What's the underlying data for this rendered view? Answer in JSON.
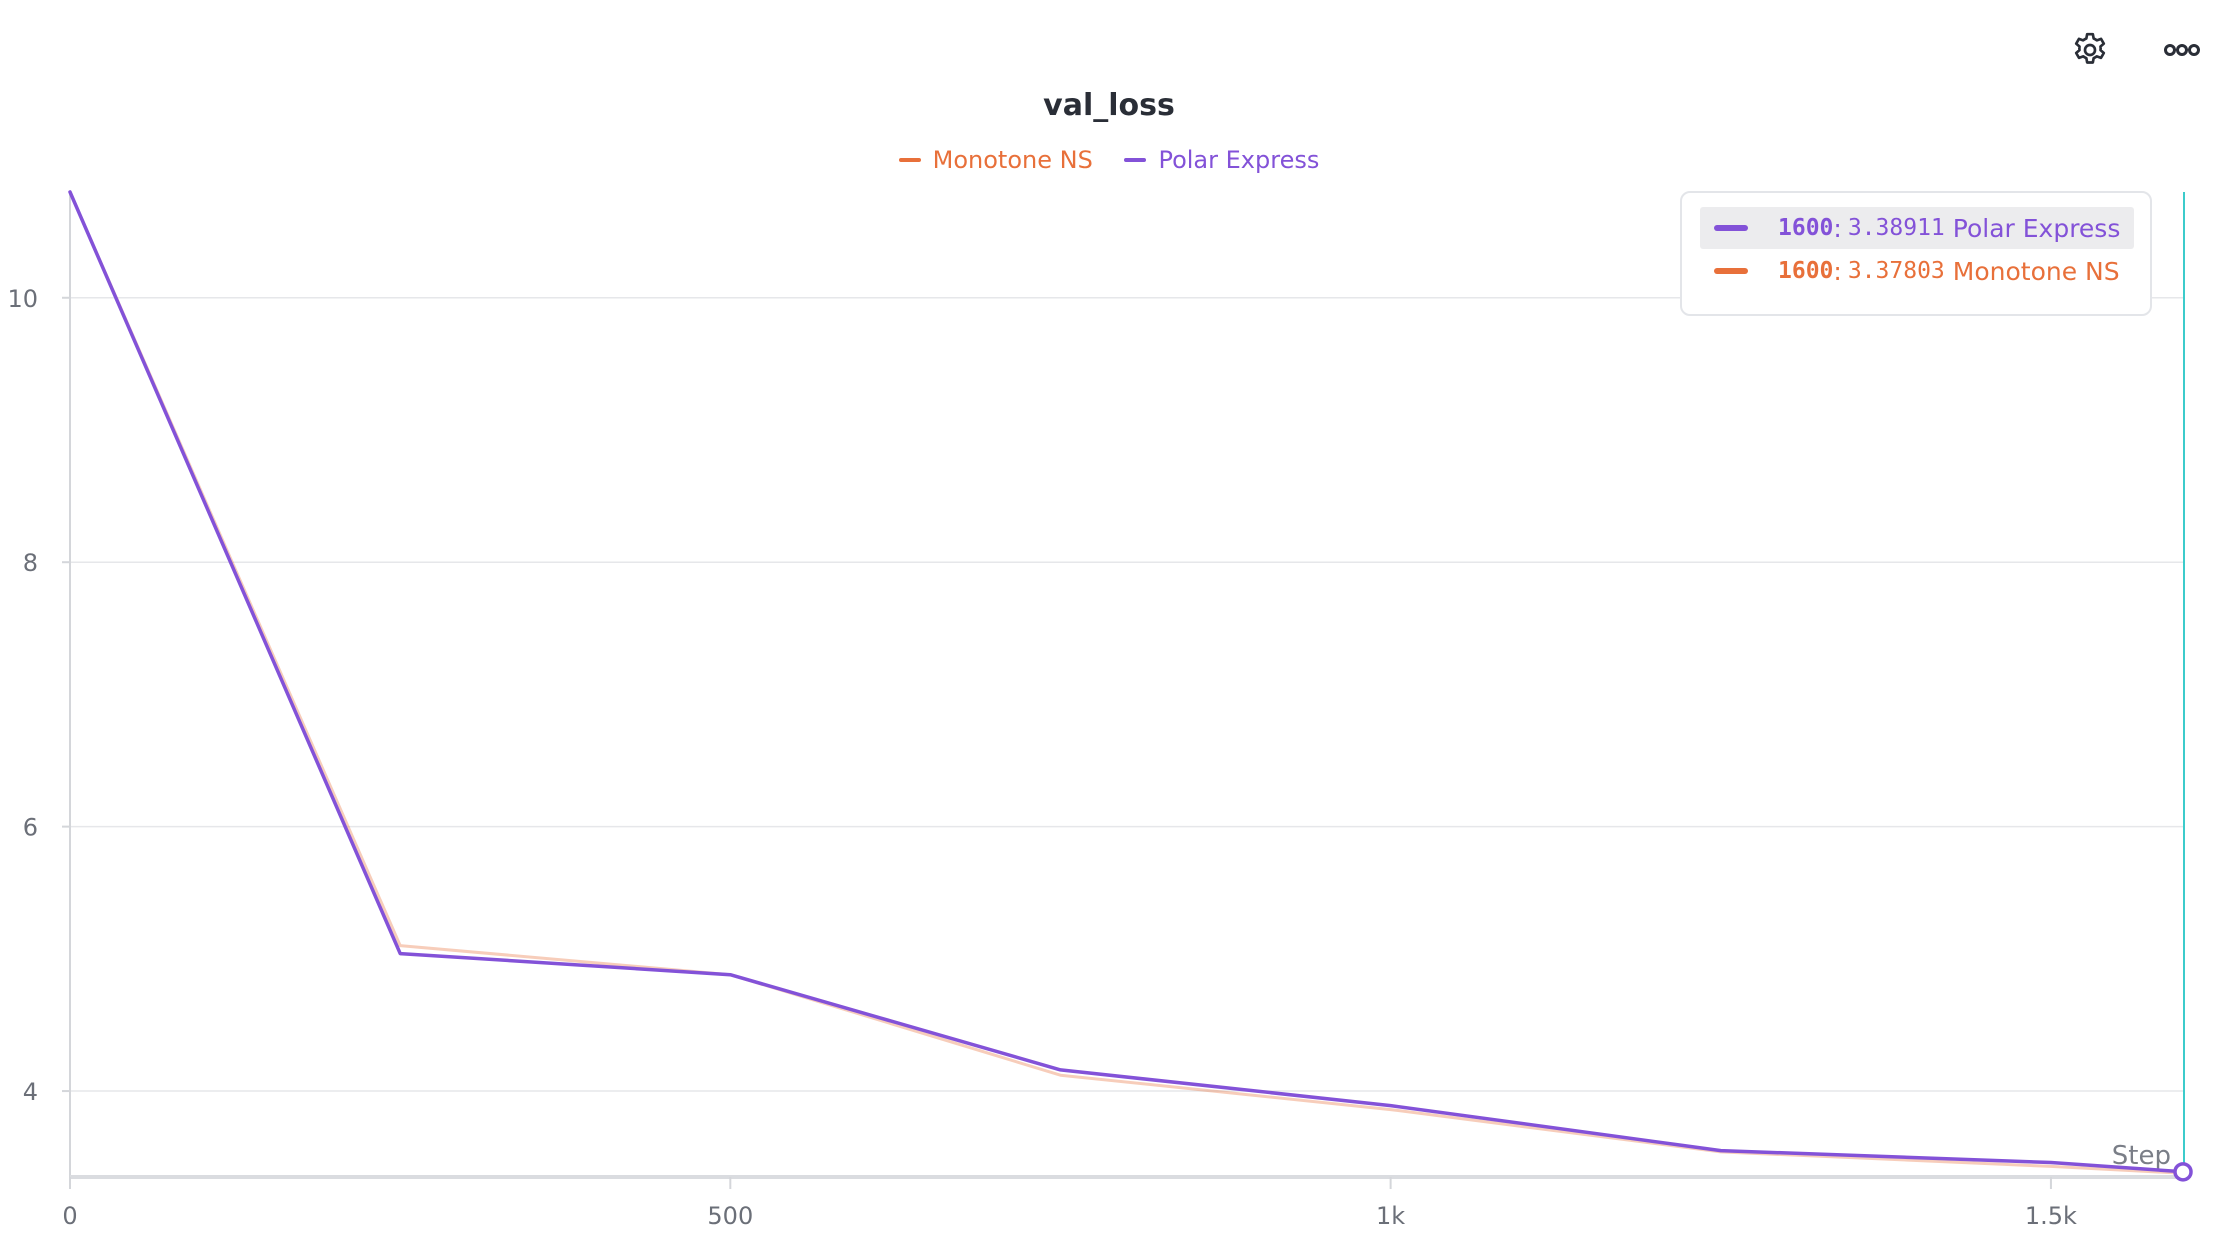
{
  "header": {
    "settings_icon": "gear-icon",
    "more_icon": "ellipsis-icon"
  },
  "chart_data": {
    "type": "line",
    "title": "val_loss",
    "xlabel": "Step",
    "ylabel": "",
    "xlim": [
      0,
      1600
    ],
    "ylim": [
      3.35,
      10.8
    ],
    "x_ticks": [
      0,
      500,
      1000,
      1500
    ],
    "x_tick_labels": [
      "0",
      "500",
      "1k",
      "1.5k"
    ],
    "y_ticks": [
      4,
      6,
      8,
      10
    ],
    "y_tick_labels": [
      "4",
      "6",
      "8",
      "10"
    ],
    "grid": true,
    "legend_position": "top-center",
    "series": [
      {
        "name": "Monotone NS",
        "color": "#e8703a",
        "x": [
          0,
          250,
          500,
          750,
          1000,
          1250,
          1500,
          1600
        ],
        "values": [
          10.8,
          5.1,
          4.88,
          4.12,
          3.86,
          3.54,
          3.43,
          3.37803
        ]
      },
      {
        "name": "Polar Express",
        "color": "#8352d8",
        "x": [
          0,
          250,
          500,
          750,
          1000,
          1250,
          1500,
          1600
        ],
        "values": [
          10.8,
          5.04,
          4.88,
          4.16,
          3.89,
          3.55,
          3.46,
          3.38911
        ]
      }
    ],
    "tooltip": {
      "rows": [
        {
          "step": "1600",
          "value": "3.38911",
          "series": "Polar Express",
          "color": "#8352d8"
        },
        {
          "step": "1600",
          "value": "3.37803",
          "series": "Monotone NS",
          "color": "#e8703a"
        }
      ]
    },
    "hover_line_color": "#3ccbcb"
  }
}
